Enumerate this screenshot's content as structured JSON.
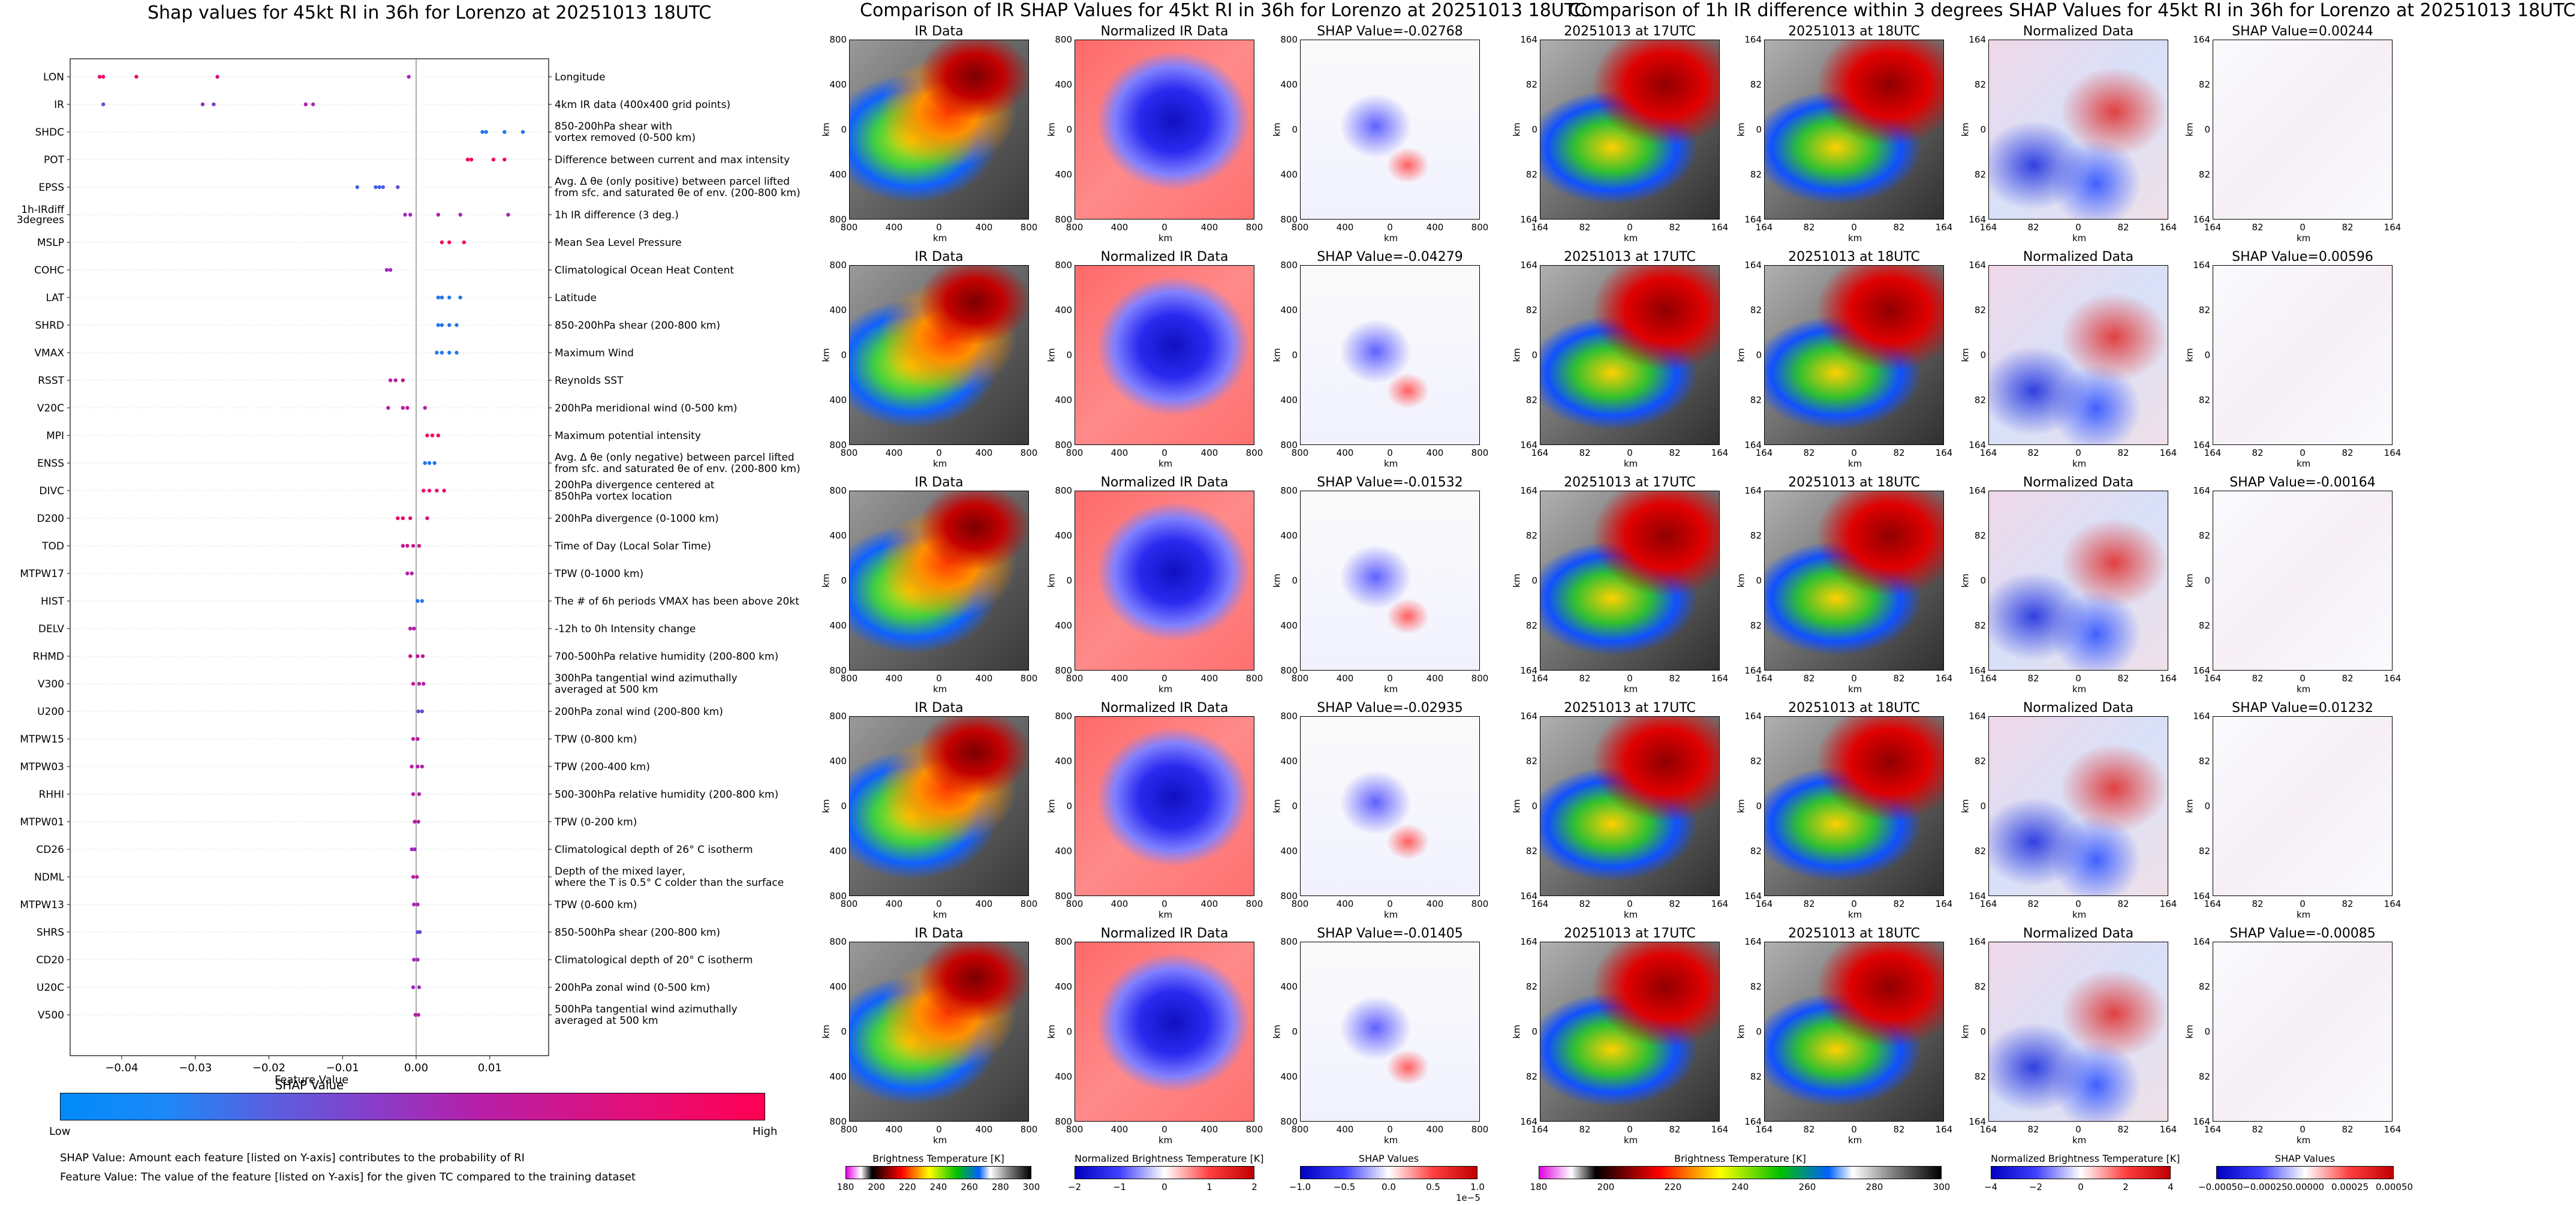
{
  "left_chart": {
    "title": "Shap values for 45kt RI in 36h for Lorenzo at 20251013 18UTC",
    "xlabel": "SHAP Value",
    "xticks": [
      "−0.04",
      "−0.03",
      "−0.02",
      "−0.01",
      "0.00",
      "0.01"
    ],
    "colorbar_title": "Feature Value",
    "colorbar_low": "Low",
    "colorbar_high": "High",
    "foot1": "SHAP Value: Amount each feature [listed on Y-axis] contributes to the probability of RI",
    "foot2": "Feature Value: The value of the feature [listed on Y-axis] for the given TC compared to the training dataset"
  },
  "chart_data": {
    "type": "scatter",
    "xlim": [
      -0.047,
      0.018
    ],
    "grid": false,
    "features": [
      {
        "name": "LON",
        "desc": [
          "Longitude"
        ],
        "points": [
          [
            -0.043,
            0.9
          ],
          [
            -0.0425,
            0.9
          ],
          [
            -0.038,
            0.9
          ],
          [
            -0.027,
            0.8
          ],
          [
            -0.001,
            0.5
          ]
        ]
      },
      {
        "name": "IR",
        "desc": [
          "4km IR data (400x400 grid points)"
        ],
        "points": [
          [
            -0.0425,
            0.3
          ],
          [
            -0.029,
            0.5
          ],
          [
            -0.0275,
            0.4
          ],
          [
            -0.015,
            0.6
          ],
          [
            -0.014,
            0.5
          ]
        ]
      },
      {
        "name": "SHDC",
        "desc": [
          "850-200hPa shear with",
          "vortex removed (0-500 km)"
        ],
        "points": [
          [
            0.009,
            0.1
          ],
          [
            0.0095,
            0.1
          ],
          [
            0.012,
            0.1
          ],
          [
            0.0145,
            0.1
          ]
        ]
      },
      {
        "name": "POT",
        "desc": [
          "Difference between current and max intensity"
        ],
        "points": [
          [
            0.007,
            0.95
          ],
          [
            0.0075,
            0.95
          ],
          [
            0.0105,
            0.95
          ],
          [
            0.012,
            0.95
          ]
        ]
      },
      {
        "name": "EPSS",
        "desc": [
          "Avg. Δ θe (only positive) between parcel lifted",
          "from sfc. and saturated θe of env. (200-800 km)"
        ],
        "points": [
          [
            -0.008,
            0.2
          ],
          [
            -0.0055,
            0.2
          ],
          [
            -0.005,
            0.2
          ],
          [
            -0.0045,
            0.25
          ],
          [
            -0.0025,
            0.3
          ]
        ]
      },
      {
        "name": "1h-IRdiff 3degrees",
        "desc": [
          "1h IR difference (3 deg.)"
        ],
        "points": [
          [
            -0.0015,
            0.5
          ],
          [
            -0.0008,
            0.5
          ],
          [
            0.003,
            0.6
          ],
          [
            0.006,
            0.5
          ],
          [
            0.0125,
            0.6
          ]
        ]
      },
      {
        "name": "MSLP",
        "desc": [
          "Mean Sea Level Pressure"
        ],
        "points": [
          [
            0.0035,
            0.95
          ],
          [
            0.0045,
            0.95
          ],
          [
            0.0065,
            0.95
          ]
        ]
      },
      {
        "name": "COHC",
        "desc": [
          "Climatological Ocean Heat Content"
        ],
        "points": [
          [
            -0.004,
            0.5
          ],
          [
            -0.0035,
            0.5
          ]
        ]
      },
      {
        "name": "LAT",
        "desc": [
          "Latitude"
        ],
        "points": [
          [
            0.003,
            0.1
          ],
          [
            0.0035,
            0.1
          ],
          [
            0.0045,
            0.1
          ],
          [
            0.006,
            0.1
          ]
        ]
      },
      {
        "name": "SHRD",
        "desc": [
          "850-200hPa shear (200-800 km)"
        ],
        "points": [
          [
            0.003,
            0.1
          ],
          [
            0.0035,
            0.1
          ],
          [
            0.0045,
            0.1
          ],
          [
            0.0055,
            0.1
          ]
        ]
      },
      {
        "name": "VMAX",
        "desc": [
          "Maximum Wind"
        ],
        "points": [
          [
            0.0028,
            0.1
          ],
          [
            0.0035,
            0.1
          ],
          [
            0.0045,
            0.1
          ],
          [
            0.0055,
            0.1
          ]
        ]
      },
      {
        "name": "RSST",
        "desc": [
          "Reynolds SST"
        ],
        "points": [
          [
            -0.0035,
            0.6
          ],
          [
            -0.0028,
            0.6
          ],
          [
            -0.0018,
            0.7
          ]
        ]
      },
      {
        "name": "V20C",
        "desc": [
          "200hPa meridional wind (0-500 km)"
        ],
        "points": [
          [
            -0.0038,
            0.6
          ],
          [
            -0.0018,
            0.6
          ],
          [
            -0.0012,
            0.7
          ],
          [
            0.0012,
            0.6
          ]
        ]
      },
      {
        "name": "MPI",
        "desc": [
          "Maximum potential intensity"
        ],
        "points": [
          [
            0.0015,
            0.95
          ],
          [
            0.0022,
            0.95
          ],
          [
            0.003,
            0.95
          ]
        ]
      },
      {
        "name": "ENSS",
        "desc": [
          "Avg. Δ θe (only negative) between parcel lifted",
          "from sfc. and saturated θe of env. (200-800 km)"
        ],
        "points": [
          [
            0.0012,
            0.1
          ],
          [
            0.0018,
            0.1
          ],
          [
            0.0025,
            0.1
          ]
        ]
      },
      {
        "name": "DIVC",
        "desc": [
          "200hPa divergence centered at",
          "850hPa vortex location"
        ],
        "points": [
          [
            0.001,
            0.9
          ],
          [
            0.0018,
            0.9
          ],
          [
            0.0028,
            0.9
          ],
          [
            0.0038,
            0.9
          ]
        ]
      },
      {
        "name": "D200",
        "desc": [
          "200hPa divergence (0-1000 km)"
        ],
        "points": [
          [
            -0.0025,
            0.9
          ],
          [
            -0.0018,
            0.9
          ],
          [
            -0.0008,
            0.8
          ],
          [
            0.0015,
            0.8
          ]
        ]
      },
      {
        "name": "TOD",
        "desc": [
          "Time of Day (Local Solar Time)"
        ],
        "points": [
          [
            -0.0018,
            0.7
          ],
          [
            -0.0012,
            0.7
          ],
          [
            -0.0004,
            0.7
          ],
          [
            0.0004,
            0.7
          ]
        ]
      },
      {
        "name": "MTPW17",
        "desc": [
          "TPW (0-1000 km)"
        ],
        "points": [
          [
            -0.0012,
            0.6
          ],
          [
            -0.0006,
            0.6
          ]
        ]
      },
      {
        "name": "HIST",
        "desc": [
          "The # of 6h periods VMAX has been above 20kt"
        ],
        "points": [
          [
            0.0002,
            0.1
          ],
          [
            0.0008,
            0.1
          ]
        ]
      },
      {
        "name": "DELV",
        "desc": [
          "-12h to 0h Intensity change"
        ],
        "points": [
          [
            -0.0008,
            0.6
          ],
          [
            -0.0003,
            0.6
          ]
        ]
      },
      {
        "name": "RHMD",
        "desc": [
          "700-500hPa relative humidity (200-800 km)"
        ],
        "points": [
          [
            -0.0008,
            0.7
          ],
          [
            0.0002,
            0.7
          ],
          [
            0.0009,
            0.7
          ]
        ]
      },
      {
        "name": "V300",
        "desc": [
          "300hPa tangential wind azimuthally",
          "averaged at 500 km"
        ],
        "points": [
          [
            -0.0004,
            0.7
          ],
          [
            0.0004,
            0.6
          ],
          [
            0.001,
            0.6
          ]
        ]
      },
      {
        "name": "U200",
        "desc": [
          "200hPa zonal wind (200-800 km)"
        ],
        "points": [
          [
            0.0003,
            0.3
          ],
          [
            0.0008,
            0.3
          ]
        ]
      },
      {
        "name": "MTPW15",
        "desc": [
          "TPW (0-800 km)"
        ],
        "points": [
          [
            -0.0004,
            0.6
          ],
          [
            0.0002,
            0.6
          ]
        ]
      },
      {
        "name": "MTPW03",
        "desc": [
          "TPW (200-400 km)"
        ],
        "points": [
          [
            -0.0006,
            0.6
          ],
          [
            0.0002,
            0.6
          ],
          [
            0.0008,
            0.6
          ]
        ]
      },
      {
        "name": "RHHI",
        "desc": [
          "500-300hPa relative humidity (200-800 km)"
        ],
        "points": [
          [
            -0.0004,
            0.6
          ],
          [
            0.0004,
            0.6
          ]
        ]
      },
      {
        "name": "MTPW01",
        "desc": [
          "TPW (0-200 km)"
        ],
        "points": [
          [
            -0.0002,
            0.6
          ],
          [
            0.0003,
            0.6
          ]
        ]
      },
      {
        "name": "CD26",
        "desc": [
          "Climatological depth of 26° C isotherm"
        ],
        "points": [
          [
            -0.0006,
            0.5
          ],
          [
            -0.0002,
            0.5
          ]
        ]
      },
      {
        "name": "NDML",
        "desc": [
          "Depth of the mixed layer,",
          "where the T is 0.5° C colder than the surface"
        ],
        "points": [
          [
            -0.0004,
            0.6
          ],
          [
            0.0001,
            0.6
          ]
        ]
      },
      {
        "name": "MTPW13",
        "desc": [
          "TPW (0-600 km)"
        ],
        "points": [
          [
            -0.0003,
            0.6
          ],
          [
            0.0002,
            0.6
          ]
        ]
      },
      {
        "name": "SHRS",
        "desc": [
          "850-500hPa shear (200-800 km)"
        ],
        "points": [
          [
            0.0002,
            0.3
          ],
          [
            0.0005,
            0.3
          ]
        ]
      },
      {
        "name": "CD20",
        "desc": [
          "Climatological depth of 20° C isotherm"
        ],
        "points": [
          [
            -0.0003,
            0.5
          ],
          [
            0.0002,
            0.5
          ]
        ]
      },
      {
        "name": "U20C",
        "desc": [
          "200hPa zonal wind (0-500 km)"
        ],
        "points": [
          [
            -0.0004,
            0.5
          ],
          [
            0.0004,
            0.5
          ]
        ]
      },
      {
        "name": "V500",
        "desc": [
          "500hPa tangential wind azimuthally",
          "averaged at 500 km"
        ],
        "points": [
          [
            -0.0001,
            0.6
          ],
          [
            0.0003,
            0.6
          ]
        ]
      }
    ]
  },
  "middle": {
    "title": "Comparison of IR SHAP Values for 45kt RI in 36h for Lorenzo at 20251013 18UTC",
    "col_titles": [
      "IR Data",
      "Normalized IR Data"
    ],
    "shap_titles": [
      "SHAP Value=-0.02768",
      "SHAP Value=-0.04279",
      "SHAP Value=-0.01532",
      "SHAP Value=-0.02935",
      "SHAP Value=-0.01405"
    ],
    "xticks": [
      "800",
      "400",
      "0",
      "400",
      "800"
    ],
    "yticks": [
      "800",
      "400",
      "0",
      "400",
      "800"
    ],
    "axis_label": "km",
    "cb1_label": "Brightness Temperature [K]",
    "cb1_ticks": [
      "180",
      "200",
      "220",
      "240",
      "260",
      "280",
      "300"
    ],
    "cb2_label": "Normalized Brightness Temperature [K]",
    "cb2_ticks": [
      "−2",
      "−1",
      "0",
      "1",
      "2"
    ],
    "cb3_label": "SHAP Values",
    "cb3_ticks": [
      "−1.0",
      "−0.5",
      "0.0",
      "0.5",
      "1.0"
    ],
    "cb3_exp": "1e−5"
  },
  "right": {
    "title": "Comparison of 1h IR difference within 3 degrees SHAP Values for 45kt RI in 36h for Lorenzo at 20251013 18UTC",
    "col_titles": [
      "20251013 at 17UTC",
      "20251013 at 18UTC",
      "Normalized Data"
    ],
    "shap_titles": [
      "SHAP Value=0.00244",
      "SHAP Value=0.00596",
      "SHAP Value=-0.00164",
      "SHAP Value=0.01232",
      "SHAP Value=-0.00085"
    ],
    "xticks": [
      "164",
      "82",
      "0",
      "82",
      "164"
    ],
    "yticks": [
      "164",
      "82",
      "0",
      "82",
      "164"
    ],
    "axis_label": "km",
    "cb1_label": "Brightness Temperature [K]",
    "cb1_ticks": [
      "180",
      "200",
      "220",
      "240",
      "260",
      "280",
      "300"
    ],
    "cb2_label": "Normalized Brightness Temperature [K]",
    "cb2_ticks": [
      "−4",
      "−2",
      "0",
      "2",
      "4"
    ],
    "cb3_label": "SHAP Values",
    "cb3_ticks": [
      "−0.00050",
      "−0.00025",
      "0.00000",
      "0.00025",
      "0.00050"
    ]
  }
}
